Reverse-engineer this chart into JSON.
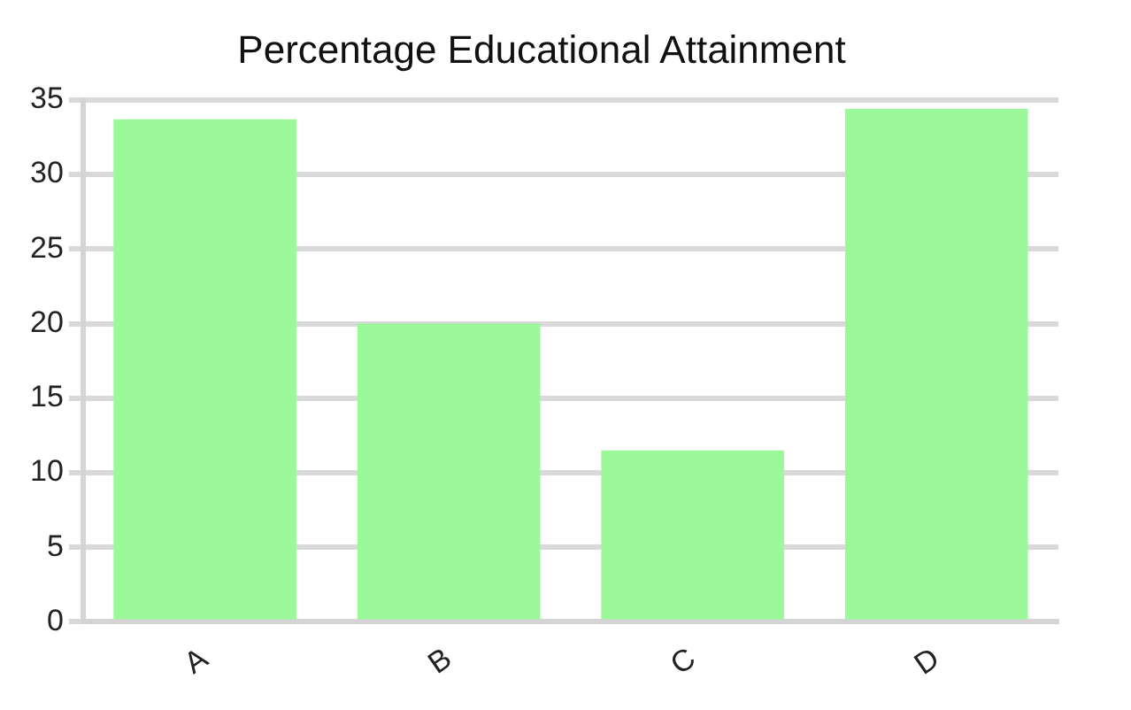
{
  "chart_data": {
    "type": "bar",
    "title": "Percentage Educational Attainment",
    "categories": [
      "A",
      "B",
      "C",
      "D"
    ],
    "values": [
      33.7,
      20,
      11.5,
      34.4
    ],
    "color": "#9cf99a",
    "ylim": [
      0,
      35
    ],
    "yticks": [
      0,
      5,
      10,
      15,
      20,
      25,
      30,
      35
    ],
    "grid": "y"
  }
}
